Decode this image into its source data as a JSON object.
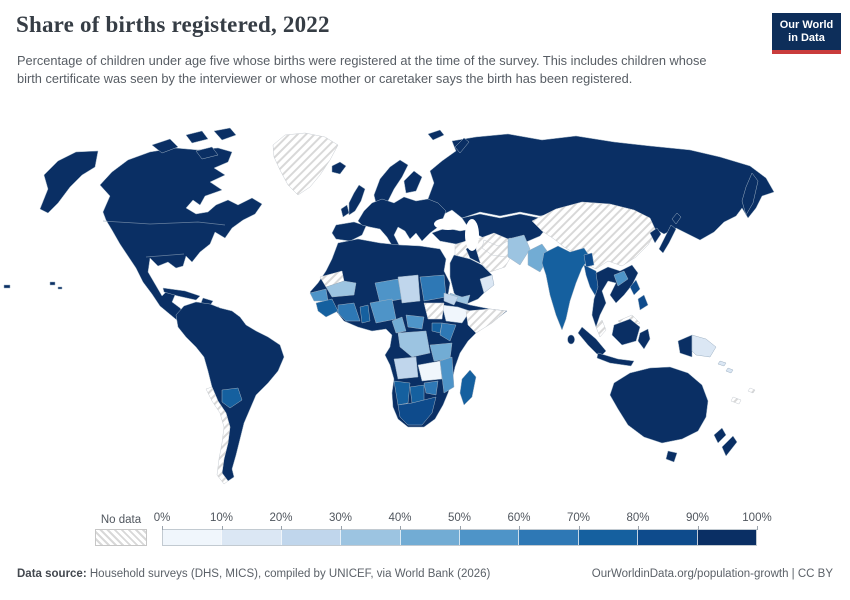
{
  "header": {
    "title": "Share of births registered, 2022",
    "subtitle": "Percentage of children under age five whose births were registered at the time of the survey. This includes children whose birth certificate was seen by the interviewer or whose mother or caretaker says the birth has been registered.",
    "logo": {
      "line1": "Our World",
      "line2": "in Data",
      "bg_color": "#0d2e5a",
      "accent_color": "#c93c3c"
    }
  },
  "legend": {
    "no_data_label": "No data",
    "tick_labels": [
      "0%",
      "10%",
      "20%",
      "30%",
      "40%",
      "50%",
      "60%",
      "70%",
      "80%",
      "90%",
      "100%"
    ]
  },
  "footer": {
    "source_label": "Data source:",
    "source_text": " Household surveys (DHS, MICS), compiled by UNICEF, via World Bank (2026)",
    "link_text": "OurWorldinData.org/population-growth | CC BY"
  },
  "chart_data": {
    "type": "choropleth-map",
    "title": "Share of births registered, 2022",
    "unit": "% of children under age five registered",
    "projection": "world map",
    "bin_order": [
      "0-10",
      "10-20",
      "20-30",
      "30-40",
      "40-50",
      "50-60",
      "60-70",
      "70-80",
      "80-90",
      "90-100"
    ],
    "bin_colors": {
      "0-10": "#f0f6fc",
      "10-20": "#dbe7f4",
      "20-30": "#c0d6ec",
      "30-40": "#9cc4e1",
      "40-50": "#72acd4",
      "50-60": "#4e94c8",
      "60-70": "#2e78b5",
      "70-80": "#15609f",
      "80-90": "#0e4b8c",
      "90-100": "#0a2f64"
    },
    "no_data_style": {
      "stripe_color": "#d8d8d8",
      "background": "#ffffff"
    },
    "regions": {
      "alaska": "90-100",
      "canada-usa-mexico": "90-100",
      "arctic-islands": "90-100",
      "greenland": "no-data",
      "hawaii": "90-100",
      "cuba": "90-100",
      "hispaniola": "90-100",
      "lesser-antilles": "90-100",
      "south-america": "90-100",
      "paraguay": "70-80",
      "chile": "no-data",
      "iceland": "90-100",
      "uk": "90-100",
      "ireland": "90-100",
      "scandinavia": "90-100",
      "finland": "90-100",
      "iberia": "90-100",
      "europe-mainland": "90-100",
      "russia": "90-100",
      "kamchatka": "90-100",
      "svalbard": "90-100",
      "novaya-zemlya": "90-100",
      "kazakhstan-central-asia": "90-100",
      "turkmenistan": "no-data",
      "turkey": "90-100",
      "levant": "no-data",
      "iraq": "90-100",
      "iran": "no-data",
      "saudi-arabia": "90-100",
      "yemen": "30-40",
      "oman": "10-20",
      "afghanistan": "30-40",
      "pakistan": "40-50",
      "india": "70-80",
      "bangladesh": "80-90",
      "sri-lanka": "90-100",
      "china-mongolia": "no-data",
      "korea": "90-100",
      "japan": "90-100",
      "myanmar": "80-90",
      "indochina": "90-100",
      "laos": "50-60",
      "malaysia": "no-data",
      "sumatra": "90-100",
      "java": "90-100",
      "borneo": "90-100",
      "sulawesi": "90-100",
      "philippines": "80-90",
      "west-new-guinea": "90-100",
      "papua-new-guinea": "10-20",
      "solomon-islands": "10-20",
      "pacific-islands": "no-data",
      "australia": "90-100",
      "tasmania": "90-100",
      "new-zealand": "90-100",
      "africa-base": "90-100",
      "western-sahara": "no-data",
      "mauritania": "30-40",
      "senegal-gambia": "50-60",
      "guinea-region": "70-80",
      "cote-divoire-ghana": "60-70",
      "togo-benin": "70-80",
      "niger": "50-60",
      "nigeria": "50-60",
      "chad": "20-30",
      "sudan": "60-70",
      "eritrea": "20-30",
      "ethiopia": "0-10",
      "somalia": "no-data",
      "south-sudan": "no-data",
      "cameroon": "40-50",
      "central-african-republic": "50-60",
      "uganda": "70-80",
      "kenya": "60-70",
      "dr-congo": "30-40",
      "tanzania": "40-50",
      "angola": "20-30",
      "zambia": "0-10",
      "mozambique-malawi": "50-60",
      "zimbabwe": "60-70",
      "botswana": "70-80",
      "namibia": "70-80",
      "south-africa": "80-90",
      "madagascar": "70-80",
      "west-pacific-dots": "90-100",
      "micronesia-dots": "90-100"
    }
  }
}
